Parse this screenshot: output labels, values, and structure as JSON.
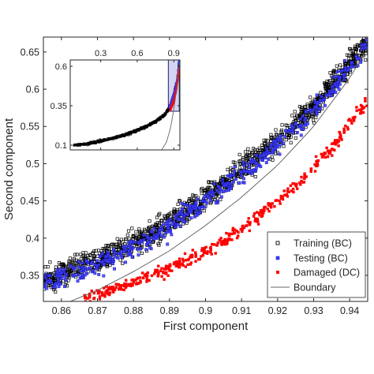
{
  "chart_data": [
    {
      "type": "scatter",
      "xlabel": "First component",
      "ylabel": "Second component",
      "xlim": [
        0.855,
        0.945
      ],
      "ylim": [
        0.315,
        0.67
      ],
      "x_ticks": [
        0.86,
        0.87,
        0.88,
        0.89,
        0.9,
        0.91,
        0.92,
        0.93,
        0.94
      ],
      "x_tick_labels": [
        "0.86",
        "0.87",
        "0.88",
        "0.89",
        "0.9",
        "0.91",
        "0.92",
        "0.93",
        "0.94"
      ],
      "y_ticks": [
        0.35,
        0.4,
        0.45,
        0.5,
        0.55,
        0.6,
        0.65
      ],
      "y_tick_labels": [
        "0.35",
        "0.4",
        "0.45",
        "0.5",
        "0.55",
        "0.6",
        "0.65"
      ],
      "grid": false,
      "legend_position": "bottom-right",
      "legend": [
        "Training (BC)",
        "Testing (BC)",
        "Damaged (DC)",
        "Boundary"
      ],
      "colors": {
        "training": "#000000",
        "testing": "#3a3aff",
        "damaged": "#ff0000",
        "boundary": "#666666"
      },
      "series": [
        {
          "name": "Training (BC)",
          "marker": "open-square",
          "trend": {
            "x": [
              0.855,
              0.87,
              0.885,
              0.9,
              0.915,
              0.93,
              0.945
            ],
            "y": [
              0.345,
              0.37,
              0.405,
              0.455,
              0.51,
              0.575,
              0.665
            ]
          },
          "scatter_spread": 0.025,
          "point_count": 1400
        },
        {
          "name": "Testing (BC)",
          "marker": "filled-square",
          "trend": {
            "x": [
              0.855,
              0.87,
              0.885,
              0.9,
              0.915,
              0.93,
              0.945
            ],
            "y": [
              0.34,
              0.365,
              0.4,
              0.45,
              0.505,
              0.57,
              0.66
            ]
          },
          "scatter_spread": 0.022,
          "point_count": 500
        },
        {
          "name": "Damaged (DC)",
          "marker": "filled-square",
          "trend": {
            "x": [
              0.866,
              0.88,
              0.895,
              0.905,
              0.915,
              0.925,
              0.935,
              0.945
            ],
            "y": [
              0.318,
              0.34,
              0.37,
              0.395,
              0.43,
              0.47,
              0.52,
              0.585
            ]
          },
          "scatter_spread": 0.012,
          "point_count": 420
        },
        {
          "name": "Boundary",
          "marker": "line",
          "x": [
            0.86,
            0.87,
            0.88,
            0.89,
            0.9,
            0.91,
            0.92,
            0.93,
            0.94,
            0.945
          ],
          "y": [
            0.31,
            0.33,
            0.355,
            0.383,
            0.417,
            0.455,
            0.498,
            0.55,
            0.615,
            0.655
          ]
        }
      ]
    },
    {
      "type": "scatter",
      "role": "inset overview",
      "xlim": [
        0.05,
        0.95
      ],
      "ylim": [
        0.07,
        0.64
      ],
      "x_ticks": [
        0.3,
        0.6,
        0.9
      ],
      "x_tick_labels": [
        "0.3",
        "0.6",
        "0.9"
      ],
      "x_axis_position": "top",
      "y_ticks": [
        0.1,
        0.35,
        0.6
      ],
      "y_tick_labels": [
        "0.1",
        "0.35",
        "0.6"
      ],
      "zoom_box": {
        "x": [
          0.855,
          0.945
        ],
        "y": [
          0.315,
          0.67
        ]
      },
      "series": [
        {
          "name": "Training (BC)",
          "curve_x": [
            0.08,
            0.2,
            0.35,
            0.5,
            0.65,
            0.75,
            0.82,
            0.86,
            0.9,
            0.93,
            0.945
          ],
          "curve_y": [
            0.1,
            0.11,
            0.135,
            0.165,
            0.21,
            0.25,
            0.29,
            0.33,
            0.42,
            0.52,
            0.64
          ]
        },
        {
          "name": "Testing (BC)",
          "curve_x": [
            0.86,
            0.9,
            0.93,
            0.945
          ],
          "curve_y": [
            0.33,
            0.42,
            0.52,
            0.64
          ]
        },
        {
          "name": "Damaged (DC)",
          "curve_x": [
            0.87,
            0.9,
            0.92,
            0.945
          ],
          "curve_y": [
            0.32,
            0.38,
            0.45,
            0.59
          ]
        },
        {
          "name": "Boundary",
          "curve_x": [
            0.8,
            0.84,
            0.87,
            0.89,
            0.91,
            0.93,
            0.945
          ],
          "curve_y": [
            0.07,
            0.12,
            0.2,
            0.28,
            0.38,
            0.5,
            0.62
          ]
        }
      ]
    }
  ]
}
